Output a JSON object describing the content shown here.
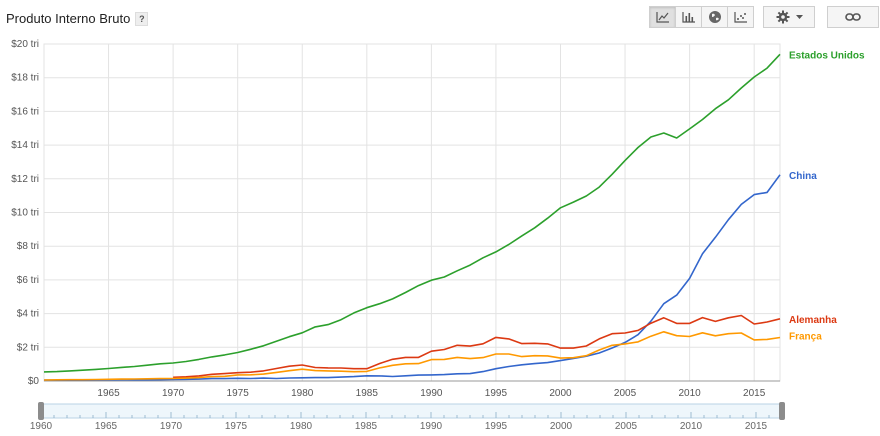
{
  "header": {
    "title": "Produto Interno Bruto",
    "help_label": "?"
  },
  "toolbar": {
    "views": [
      {
        "icon": "line-chart-icon",
        "active": true
      },
      {
        "icon": "bar-chart-icon",
        "active": false
      },
      {
        "icon": "globe-icon",
        "active": false
      },
      {
        "icon": "scatter-chart-icon",
        "active": false
      }
    ],
    "settings_icon": "gear-icon",
    "dropdown_icon": "chevron-down-icon",
    "link_icon": "link-icon"
  },
  "colors": {
    "usa": "#2ca02c",
    "china": "#3366cc",
    "germany": "#dc3912",
    "france": "#ff9900",
    "grid": "#e3e3e3",
    "axis": "#9a9a9a"
  },
  "chart_data": {
    "type": "line",
    "title": "Produto Interno Bruto",
    "xlim": [
      1960,
      2017
    ],
    "ylim": [
      0,
      20
    ],
    "y_ticks": [
      0,
      2,
      4,
      6,
      8,
      10,
      12,
      14,
      16,
      18,
      20
    ],
    "y_tick_labels": [
      "$0",
      "$2 tri",
      "$4 tri",
      "$6 tri",
      "$8 tri",
      "$10 tri",
      "$12 tri",
      "$14 tri",
      "$16 tri",
      "$18 tri",
      "$20 tri"
    ],
    "x_ticks": [
      1965,
      1970,
      1975,
      1980,
      1985,
      1990,
      1995,
      2000,
      2005,
      2010,
      2015
    ],
    "x_tick_labels": [
      "1965",
      "1970",
      "1975",
      "1980",
      "1985",
      "1990",
      "1995",
      "2000",
      "2005",
      "2010",
      "2015"
    ],
    "grid": true,
    "legend": "inline-right",
    "series": [
      {
        "name": "Estados Unidos",
        "key": "usa",
        "x": [
          1960,
          1961,
          1962,
          1963,
          1964,
          1965,
          1966,
          1967,
          1968,
          1969,
          1970,
          1971,
          1972,
          1973,
          1974,
          1975,
          1976,
          1977,
          1978,
          1979,
          1980,
          1981,
          1982,
          1983,
          1984,
          1985,
          1986,
          1987,
          1988,
          1989,
          1990,
          1991,
          1992,
          1993,
          1994,
          1995,
          1996,
          1997,
          1998,
          1999,
          2000,
          2001,
          2002,
          2003,
          2004,
          2005,
          2006,
          2007,
          2008,
          2009,
          2010,
          2011,
          2012,
          2013,
          2014,
          2015,
          2016,
          2017
        ],
        "values": [
          0.54,
          0.56,
          0.6,
          0.64,
          0.69,
          0.74,
          0.81,
          0.86,
          0.94,
          1.02,
          1.07,
          1.16,
          1.28,
          1.43,
          1.55,
          1.69,
          1.88,
          2.09,
          2.36,
          2.63,
          2.86,
          3.21,
          3.35,
          3.64,
          4.04,
          4.35,
          4.59,
          4.87,
          5.25,
          5.66,
          5.98,
          6.17,
          6.54,
          6.88,
          7.31,
          7.66,
          8.1,
          8.61,
          9.09,
          9.66,
          10.28,
          10.62,
          10.98,
          11.51,
          12.27,
          13.09,
          13.86,
          14.48,
          14.72,
          14.42,
          14.96,
          15.52,
          16.16,
          16.69,
          17.39,
          18.04,
          18.57,
          19.39
        ]
      },
      {
        "name": "China",
        "key": "china",
        "x": [
          1960,
          1961,
          1962,
          1963,
          1964,
          1965,
          1966,
          1967,
          1968,
          1969,
          1970,
          1971,
          1972,
          1973,
          1974,
          1975,
          1976,
          1977,
          1978,
          1979,
          1980,
          1981,
          1982,
          1983,
          1984,
          1985,
          1986,
          1987,
          1988,
          1989,
          1990,
          1991,
          1992,
          1993,
          1994,
          1995,
          1996,
          1997,
          1998,
          1999,
          2000,
          2001,
          2002,
          2003,
          2004,
          2005,
          2006,
          2007,
          2008,
          2009,
          2010,
          2011,
          2012,
          2013,
          2014,
          2015,
          2016,
          2017
        ],
        "values": [
          0.06,
          0.05,
          0.05,
          0.05,
          0.06,
          0.07,
          0.08,
          0.07,
          0.07,
          0.08,
          0.09,
          0.1,
          0.11,
          0.14,
          0.14,
          0.16,
          0.15,
          0.17,
          0.15,
          0.18,
          0.19,
          0.2,
          0.2,
          0.23,
          0.26,
          0.31,
          0.3,
          0.27,
          0.31,
          0.35,
          0.36,
          0.38,
          0.43,
          0.44,
          0.56,
          0.73,
          0.86,
          0.96,
          1.03,
          1.09,
          1.21,
          1.34,
          1.47,
          1.66,
          1.96,
          2.29,
          2.75,
          3.55,
          4.59,
          5.1,
          6.09,
          7.55,
          8.53,
          9.57,
          10.48,
          11.06,
          11.19,
          12.24
        ]
      },
      {
        "name": "Alemanha",
        "key": "germany",
        "x": [
          1970,
          1971,
          1972,
          1973,
          1974,
          1975,
          1976,
          1977,
          1978,
          1979,
          1980,
          1981,
          1982,
          1983,
          1984,
          1985,
          1986,
          1987,
          1988,
          1989,
          1990,
          1991,
          1992,
          1993,
          1994,
          1995,
          1996,
          1997,
          1998,
          1999,
          2000,
          2001,
          2002,
          2003,
          2004,
          2005,
          2006,
          2007,
          2008,
          2009,
          2010,
          2011,
          2012,
          2013,
          2014,
          2015,
          2016,
          2017
        ],
        "values": [
          0.22,
          0.25,
          0.3,
          0.4,
          0.44,
          0.49,
          0.52,
          0.6,
          0.74,
          0.88,
          0.95,
          0.8,
          0.78,
          0.77,
          0.73,
          0.73,
          1.04,
          1.29,
          1.4,
          1.4,
          1.77,
          1.87,
          2.12,
          2.07,
          2.21,
          2.59,
          2.5,
          2.22,
          2.24,
          2.2,
          1.95,
          1.95,
          2.08,
          2.5,
          2.81,
          2.85,
          3.0,
          3.43,
          3.75,
          3.42,
          3.42,
          3.76,
          3.54,
          3.75,
          3.89,
          3.38,
          3.5,
          3.69
        ]
      },
      {
        "name": "França",
        "key": "france",
        "x": [
          1960,
          1961,
          1962,
          1963,
          1964,
          1965,
          1966,
          1967,
          1968,
          1969,
          1970,
          1971,
          1972,
          1973,
          1974,
          1975,
          1976,
          1977,
          1978,
          1979,
          1980,
          1981,
          1982,
          1983,
          1984,
          1985,
          1986,
          1987,
          1988,
          1989,
          1990,
          1991,
          1992,
          1993,
          1994,
          1995,
          1996,
          1997,
          1998,
          1999,
          2000,
          2001,
          2002,
          2003,
          2004,
          2005,
          2006,
          2007,
          2008,
          2009,
          2010,
          2011,
          2012,
          2013,
          2014,
          2015,
          2016,
          2017
        ],
        "values": [
          0.06,
          0.07,
          0.08,
          0.08,
          0.09,
          0.1,
          0.11,
          0.12,
          0.13,
          0.14,
          0.15,
          0.17,
          0.2,
          0.26,
          0.28,
          0.36,
          0.37,
          0.41,
          0.51,
          0.61,
          0.7,
          0.62,
          0.6,
          0.58,
          0.55,
          0.57,
          0.78,
          0.93,
          1.02,
          1.03,
          1.27,
          1.28,
          1.4,
          1.33,
          1.39,
          1.6,
          1.6,
          1.45,
          1.5,
          1.49,
          1.36,
          1.38,
          1.5,
          1.84,
          2.12,
          2.2,
          2.32,
          2.66,
          2.92,
          2.69,
          2.64,
          2.86,
          2.68,
          2.81,
          2.85,
          2.44,
          2.47,
          2.58
        ]
      }
    ]
  },
  "timeline": {
    "x_tick_labels": [
      "1960",
      "1965",
      "1970",
      "1975",
      "1980",
      "1985",
      "1990",
      "1995",
      "2000",
      "2005",
      "2010",
      "2015"
    ],
    "x_ticks": [
      1960,
      1965,
      1970,
      1975,
      1980,
      1985,
      1990,
      1995,
      2000,
      2005,
      2010,
      2015
    ],
    "range": [
      1960,
      2017
    ]
  }
}
